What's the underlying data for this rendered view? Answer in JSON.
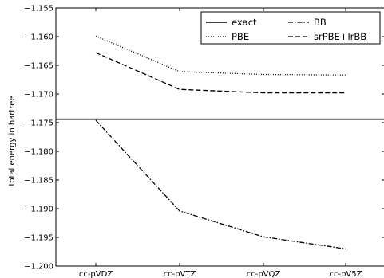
{
  "chart_data": {
    "type": "line",
    "title": "",
    "xlabel": "",
    "ylabel": "total energy in hartree",
    "categories": [
      "cc-pVDZ",
      "cc-pVTZ",
      "cc-pVQZ",
      "cc-pV5Z"
    ],
    "ylim": [
      -1.2,
      -1.155
    ],
    "yticks": [
      -1.155,
      -1.16,
      -1.165,
      -1.17,
      -1.175,
      -1.18,
      -1.185,
      -1.19,
      -1.195,
      -1.2
    ],
    "ytick_labels": [
      "−1.155",
      "−1.160",
      "−1.165",
      "−1.170",
      "−1.175",
      "−1.180",
      "−1.185",
      "−1.190",
      "−1.195",
      "−1.200"
    ],
    "grid": false,
    "legend_position": "top-right",
    "series": [
      {
        "name": "exact",
        "style": "solid",
        "horizontal": true,
        "value": -1.1744,
        "color": "#000000"
      },
      {
        "name": "PBE",
        "style": "dotted",
        "values": [
          -1.1599,
          -1.1661,
          -1.1666,
          -1.1667
        ],
        "color": "#000000"
      },
      {
        "name": "BB",
        "style": "dashdot",
        "values": [
          -1.1746,
          -1.1904,
          -1.1949,
          -1.197
        ],
        "color": "#000000"
      },
      {
        "name": "srPBE+lrBB",
        "style": "dashed",
        "values": [
          -1.1628,
          -1.1692,
          -1.1698,
          -1.1698
        ],
        "color": "#000000"
      }
    ]
  }
}
